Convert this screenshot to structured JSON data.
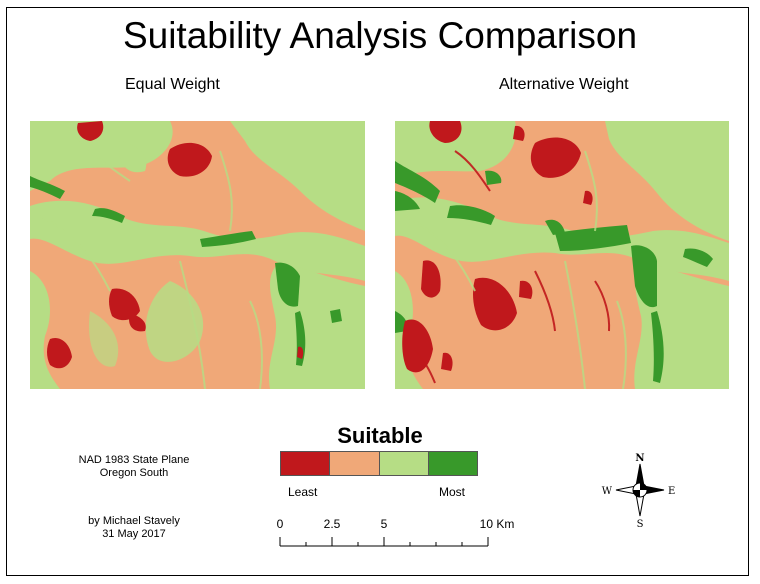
{
  "title": "Suitability Analysis Comparison",
  "panels": [
    {
      "label": "Equal Weight"
    },
    {
      "label": "Alternative Weight"
    }
  ],
  "legend": {
    "title": "Suitable",
    "classes": [
      {
        "color": "#c0181c"
      },
      {
        "color": "#f0a878"
      },
      {
        "color": "#b6dd85"
      },
      {
        "color": "#38992a"
      }
    ],
    "low_label": "Least",
    "high_label": "Most"
  },
  "projection": {
    "line1": "NAD 1983 State Plane",
    "line2": "Oregon South"
  },
  "credit": {
    "author": "by Michael Stavely",
    "date": "31 May 2017"
  },
  "scale_bar": {
    "labels": [
      "0",
      "2.5",
      "5",
      "10 Km"
    ]
  },
  "north_arrow": {
    "n": "N",
    "s": "S",
    "e": "E",
    "w": "W"
  }
}
